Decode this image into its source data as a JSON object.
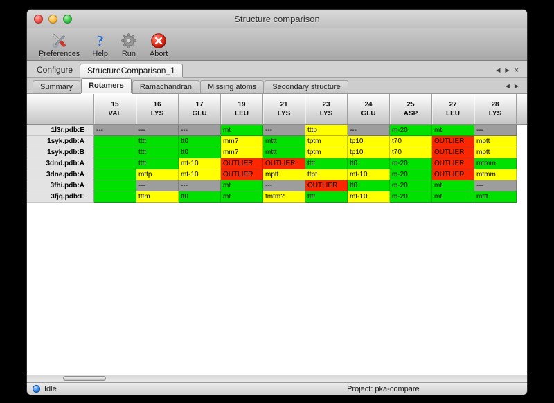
{
  "window": {
    "title": "Structure comparison"
  },
  "toolbar": {
    "buttons": [
      {
        "label": "Preferences",
        "icon": "preferences-tools-icon"
      },
      {
        "label": "Help",
        "icon": "help-question-icon"
      },
      {
        "label": "Run",
        "icon": "run-gear-icon"
      },
      {
        "label": "Abort",
        "icon": "abort-icon"
      }
    ]
  },
  "configure_bar": {
    "label": "Configure",
    "tab_label": "StructureComparison_1",
    "nav_prev": "◀",
    "nav_next": "▶",
    "close": "×"
  },
  "view_tabs": {
    "active": "Rotamers",
    "tabs": [
      "Summary",
      "Rotamers",
      "Ramachandran",
      "Missing atoms",
      "Secondary structure"
    ],
    "nav_prev": "◀",
    "nav_next": "▶"
  },
  "legend_colors": {
    "favored": "#00e100",
    "allowed": "#ffff00",
    "outlier": "#fc2700",
    "missing": "#9d9d9d"
  },
  "table": {
    "columns": [
      {
        "number": "15",
        "residue": "VAL"
      },
      {
        "number": "16",
        "residue": "LYS"
      },
      {
        "number": "17",
        "residue": "GLU"
      },
      {
        "number": "19",
        "residue": "LEU"
      },
      {
        "number": "21",
        "residue": "LYS"
      },
      {
        "number": "23",
        "residue": "LYS"
      },
      {
        "number": "24",
        "residue": "GLU"
      },
      {
        "number": "25",
        "residue": "ASP"
      },
      {
        "number": "27",
        "residue": "LEU"
      },
      {
        "number": "28",
        "residue": "LYS"
      }
    ],
    "rows": [
      {
        "name": "1l3r.pdb:E",
        "cells": [
          {
            "text": "---",
            "status": "missing"
          },
          {
            "text": "---",
            "status": "missing"
          },
          {
            "text": "---",
            "status": "missing"
          },
          {
            "text": "mt",
            "status": "favored"
          },
          {
            "text": "---",
            "status": "missing"
          },
          {
            "text": "tttp",
            "status": "allowed"
          },
          {
            "text": "---",
            "status": "missing"
          },
          {
            "text": "m-20",
            "status": "favored"
          },
          {
            "text": "mt",
            "status": "favored"
          },
          {
            "text": "---",
            "status": "missing"
          }
        ]
      },
      {
        "name": "1syk.pdb:A",
        "cells": [
          {
            "text": "",
            "status": "favored"
          },
          {
            "text": "tttt",
            "status": "favored"
          },
          {
            "text": "tt0",
            "status": "favored"
          },
          {
            "text": "mm?",
            "status": "allowed"
          },
          {
            "text": "mttt",
            "status": "favored"
          },
          {
            "text": "tptm",
            "status": "allowed"
          },
          {
            "text": "tp10",
            "status": "allowed"
          },
          {
            "text": "t70",
            "status": "allowed"
          },
          {
            "text": "OUTLIER",
            "status": "outlier"
          },
          {
            "text": "mptt",
            "status": "allowed"
          }
        ]
      },
      {
        "name": "1syk.pdb:B",
        "cells": [
          {
            "text": "",
            "status": "favored"
          },
          {
            "text": "tttt",
            "status": "favored"
          },
          {
            "text": "tt0",
            "status": "favored"
          },
          {
            "text": "mm?",
            "status": "allowed"
          },
          {
            "text": "mttt",
            "status": "favored"
          },
          {
            "text": "tptm",
            "status": "allowed"
          },
          {
            "text": "tp10",
            "status": "allowed"
          },
          {
            "text": "t70",
            "status": "allowed"
          },
          {
            "text": "OUTLIER",
            "status": "outlier"
          },
          {
            "text": "mptt",
            "status": "allowed"
          }
        ]
      },
      {
        "name": "3dnd.pdb:A",
        "cells": [
          {
            "text": "",
            "status": "favored"
          },
          {
            "text": "tttt",
            "status": "favored"
          },
          {
            "text": "mt-10",
            "status": "allowed"
          },
          {
            "text": "OUTLIER",
            "status": "outlier"
          },
          {
            "text": "OUTLIER",
            "status": "outlier"
          },
          {
            "text": "tttt",
            "status": "favored"
          },
          {
            "text": "tt0",
            "status": "favored"
          },
          {
            "text": "m-20",
            "status": "favored"
          },
          {
            "text": "OUTLIER",
            "status": "outlier"
          },
          {
            "text": "mtmm",
            "status": "favored"
          }
        ]
      },
      {
        "name": "3dne.pdb:A",
        "cells": [
          {
            "text": "",
            "status": "favored"
          },
          {
            "text": "mttp",
            "status": "allowed"
          },
          {
            "text": "mt-10",
            "status": "allowed"
          },
          {
            "text": "OUTLIER",
            "status": "outlier"
          },
          {
            "text": "mptt",
            "status": "allowed"
          },
          {
            "text": "ttpt",
            "status": "allowed"
          },
          {
            "text": "mt-10",
            "status": "allowed"
          },
          {
            "text": "m-20",
            "status": "favored"
          },
          {
            "text": "OUTLIER",
            "status": "outlier"
          },
          {
            "text": "mtmm",
            "status": "allowed"
          }
        ]
      },
      {
        "name": "3fhi.pdb:A",
        "cells": [
          {
            "text": "",
            "status": "favored"
          },
          {
            "text": "---",
            "status": "missing"
          },
          {
            "text": "---",
            "status": "missing"
          },
          {
            "text": "mt",
            "status": "favored"
          },
          {
            "text": "---",
            "status": "missing"
          },
          {
            "text": "OUTLIER",
            "status": "outlier"
          },
          {
            "text": "tt0",
            "status": "favored"
          },
          {
            "text": "m-20",
            "status": "favored"
          },
          {
            "text": "mt",
            "status": "favored"
          },
          {
            "text": "---",
            "status": "missing"
          }
        ]
      },
      {
        "name": "3fjq.pdb:E",
        "cells": [
          {
            "text": "",
            "status": "favored"
          },
          {
            "text": "tttm",
            "status": "allowed"
          },
          {
            "text": "tt0",
            "status": "favored"
          },
          {
            "text": "mt",
            "status": "favored"
          },
          {
            "text": "tmtm?",
            "status": "allowed"
          },
          {
            "text": "tttt",
            "status": "favored"
          },
          {
            "text": "mt-10",
            "status": "allowed"
          },
          {
            "text": "m-20",
            "status": "favored"
          },
          {
            "text": "mt",
            "status": "favored"
          },
          {
            "text": "mttt",
            "status": "favored"
          }
        ]
      }
    ]
  },
  "statusbar": {
    "status": "Idle",
    "project": "Project: pka-compare"
  }
}
